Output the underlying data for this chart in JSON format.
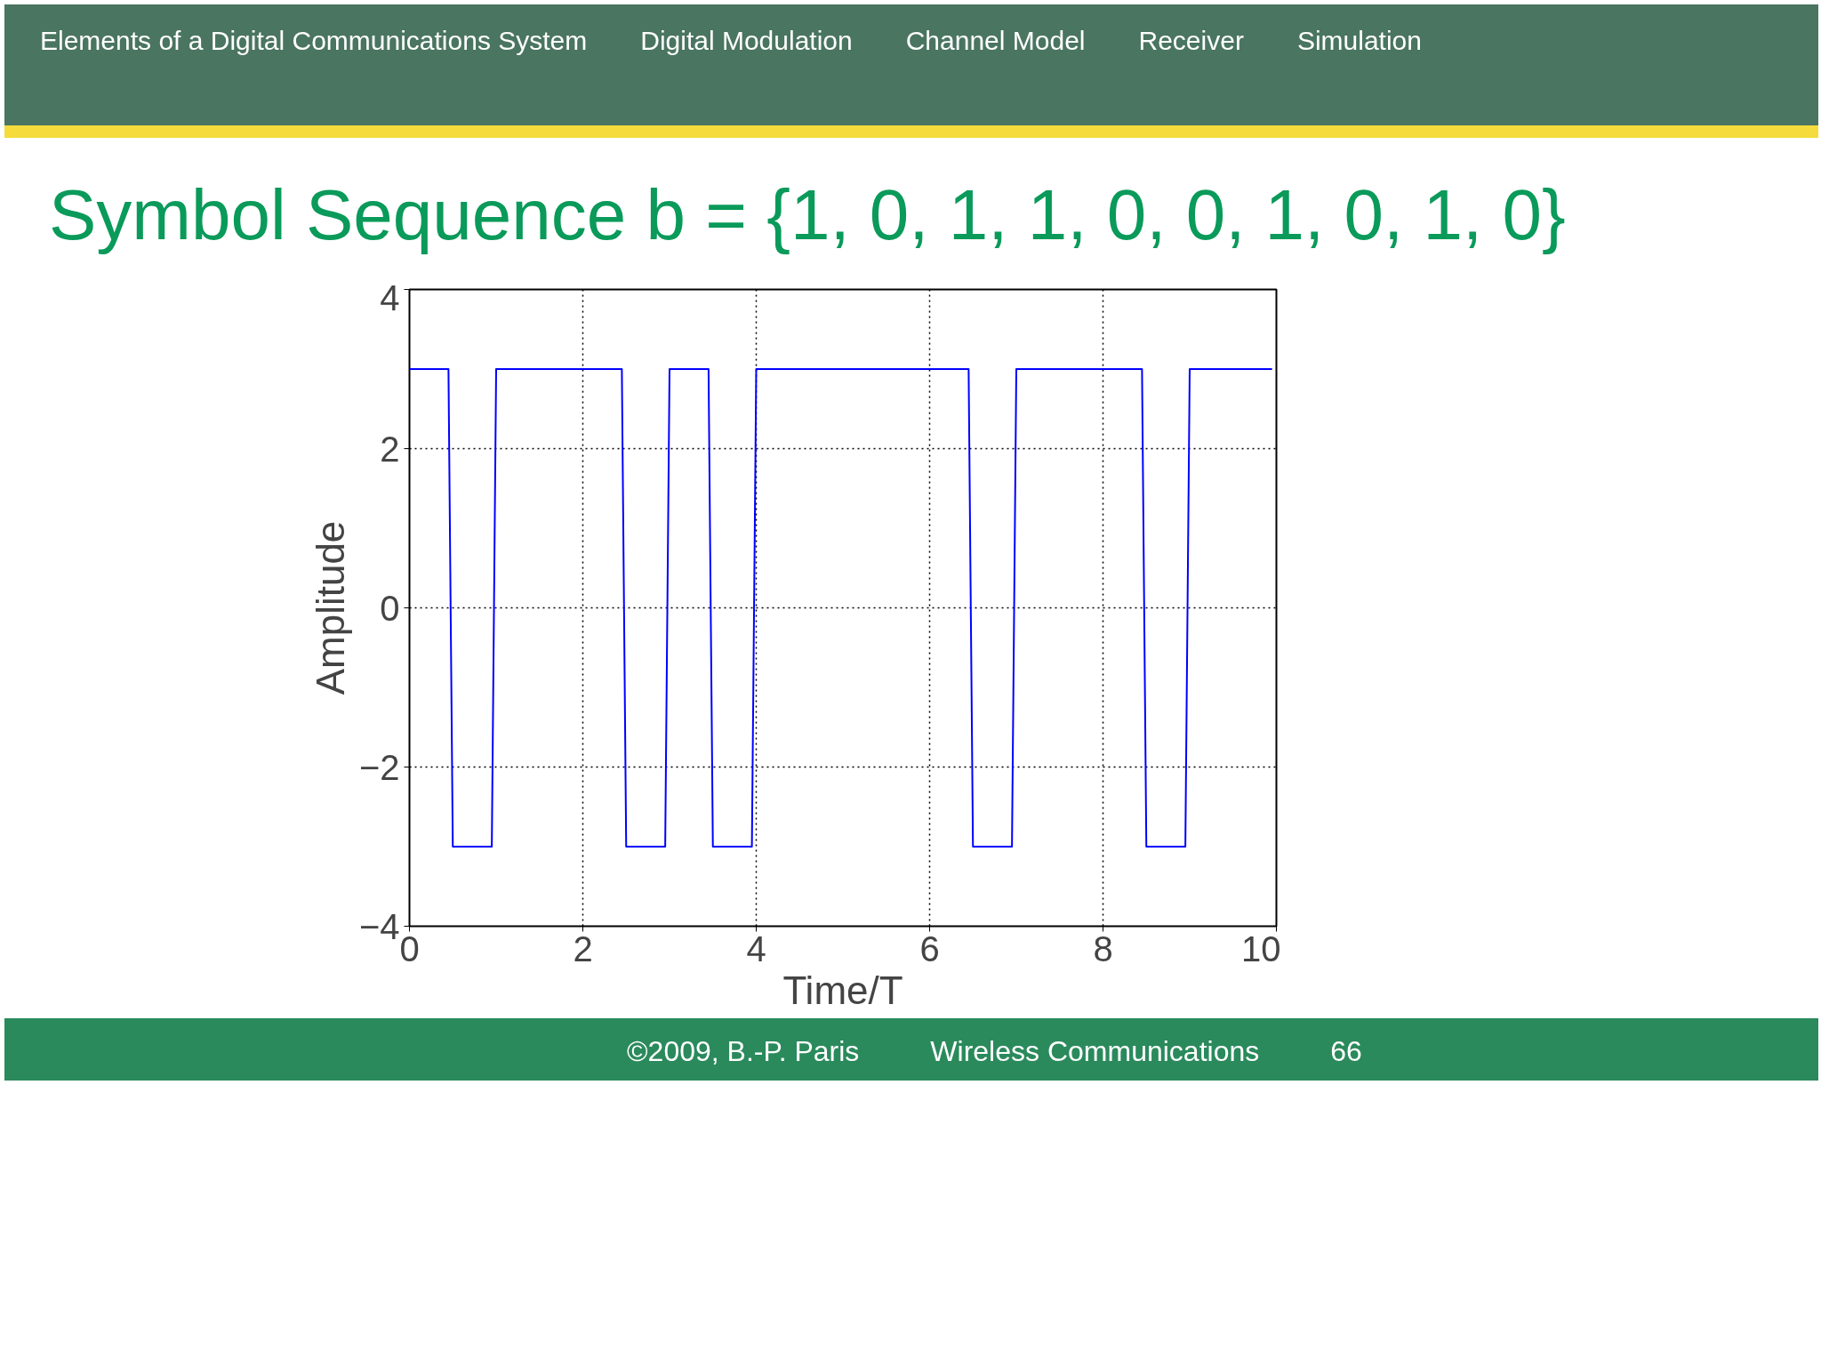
{
  "chart_data": {
    "type": "line",
    "title": "Symbol Sequence b = {1, 0, 1, 1, 0, 0, 1, 0, 1, 0}",
    "xlabel": "Time/T",
    "ylabel": "Amplitude",
    "annotations": [
      "Elements of a Digital Communications System",
      "Digital Modulation",
      "Channel Model",
      "Receiver",
      "Simulation",
      "©2009, B.-P. Paris",
      "Wireless Communications",
      "66"
    ],
    "series": [
      {
        "color": "#0000ff",
        "x": [
          0,
          0.45,
          0.5,
          0.95,
          1.0,
          2.45,
          2.5,
          2.95,
          3.0,
          3.45,
          3.5,
          3.95,
          4.0,
          6.45,
          6.5,
          6.95,
          7.0,
          8.45,
          8.5,
          8.95,
          9.0,
          9.95
        ],
        "values": [
          3,
          3,
          -3,
          -3,
          3,
          3,
          -3,
          -3,
          3,
          3,
          -3,
          -3,
          3,
          3,
          -3,
          -3,
          3,
          3,
          -3,
          -3,
          3,
          3
        ]
      }
    ],
    "xlim": [
      0,
      10
    ],
    "xticks": [
      0,
      2,
      4,
      6,
      8,
      10
    ],
    "ylim": [
      -4,
      4
    ],
    "yticks": [
      {
        "value": -4,
        "label": "−4"
      },
      {
        "value": -2,
        "label": "−2"
      },
      0,
      2,
      4
    ],
    "grid": true,
    "line_style": "solid",
    "marker": "none"
  }
}
